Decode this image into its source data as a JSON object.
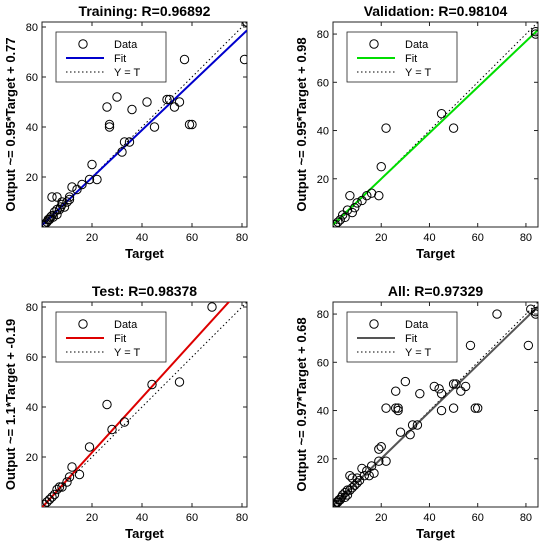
{
  "colors": {
    "Training": "#0000cc",
    "Validation": "#00dd00",
    "Test": "#dd0000",
    "All": "#555555",
    "marker": "#000000",
    "identity": "#000000"
  },
  "chart_data": [
    {
      "type": "scatter",
      "title": "Training: R=0.96892",
      "xlabel": "Target",
      "ylabel": "Output ~= 0.95*Target + 0.77",
      "xlim": [
        0,
        82
      ],
      "ylim": [
        0,
        82
      ],
      "xticks": [
        "20",
        "40",
        "60",
        "80"
      ],
      "yticks": [
        "20",
        "40",
        "60",
        "80"
      ],
      "tick_values": [
        20,
        40,
        60,
        80
      ],
      "legend": {
        "placement": "top-left",
        "entries": [
          "Data",
          "Fit",
          "Y = T"
        ]
      },
      "fit": {
        "slope": 0.95,
        "intercept": 0.77
      },
      "points": [
        [
          0.5,
          0.5
        ],
        [
          1,
          1
        ],
        [
          1.5,
          1.5
        ],
        [
          2,
          2
        ],
        [
          2.5,
          3
        ],
        [
          3,
          3
        ],
        [
          3.5,
          4
        ],
        [
          4,
          4.5
        ],
        [
          4.5,
          4
        ],
        [
          5,
          6
        ],
        [
          6,
          5
        ],
        [
          6,
          7
        ],
        [
          7,
          7
        ],
        [
          7.5,
          8
        ],
        [
          8,
          9
        ],
        [
          9,
          8
        ],
        [
          10,
          10
        ],
        [
          11,
          11
        ],
        [
          11,
          12
        ],
        [
          4,
          12
        ],
        [
          6,
          12
        ],
        [
          8,
          10
        ],
        [
          12,
          16
        ],
        [
          14,
          15
        ],
        [
          16,
          17
        ],
        [
          19,
          19
        ],
        [
          20,
          25
        ],
        [
          22,
          19
        ],
        [
          26,
          48
        ],
        [
          27,
          41
        ],
        [
          27,
          40
        ],
        [
          30,
          52
        ],
        [
          32,
          30
        ],
        [
          33,
          34
        ],
        [
          35,
          34
        ],
        [
          36,
          47
        ],
        [
          42,
          50
        ],
        [
          45,
          40
        ],
        [
          50,
          51
        ],
        [
          51,
          51
        ],
        [
          53,
          48
        ],
        [
          55,
          50
        ],
        [
          57,
          67
        ],
        [
          59,
          41
        ],
        [
          60,
          41
        ],
        [
          81,
          67
        ],
        [
          82,
          82
        ]
      ]
    },
    {
      "type": "scatter",
      "title": "Validation: R=0.98104",
      "xlabel": "Target",
      "ylabel": "Output ~= 0.95*Target + 0.98",
      "xlim": [
        0,
        85
      ],
      "ylim": [
        0,
        85
      ],
      "xticks": [
        "20",
        "40",
        "60",
        "80"
      ],
      "yticks": [
        "20",
        "40",
        "60",
        "80"
      ],
      "tick_values": [
        20,
        40,
        60,
        80
      ],
      "legend": {
        "placement": "top-left",
        "entries": [
          "Data",
          "Fit",
          "Y = T"
        ]
      },
      "fit": {
        "slope": 0.95,
        "intercept": 0.98
      },
      "points": [
        [
          1,
          1
        ],
        [
          2,
          2
        ],
        [
          3,
          3
        ],
        [
          4,
          5
        ],
        [
          5,
          4
        ],
        [
          6,
          7
        ],
        [
          7,
          13
        ],
        [
          8,
          6
        ],
        [
          9,
          8
        ],
        [
          10,
          10
        ],
        [
          12,
          11
        ],
        [
          14,
          13
        ],
        [
          16,
          14
        ],
        [
          19,
          13
        ],
        [
          20,
          25
        ],
        [
          22,
          41
        ],
        [
          45,
          47
        ],
        [
          50,
          41
        ],
        [
          84,
          80
        ],
        [
          84,
          81
        ]
      ]
    },
    {
      "type": "scatter",
      "title": "Test: R=0.98378",
      "xlabel": "Target",
      "ylabel": "Output ~= 1.1*Target + -0.19",
      "xlim": [
        0,
        82
      ],
      "ylim": [
        0,
        82
      ],
      "xticks": [
        "20",
        "40",
        "60",
        "80"
      ],
      "yticks": [
        "20",
        "40",
        "60",
        "80"
      ],
      "tick_values": [
        20,
        40,
        60,
        80
      ],
      "legend": {
        "placement": "top-left",
        "entries": [
          "Data",
          "Fit",
          "Y = T"
        ]
      },
      "fit": {
        "slope": 1.1,
        "intercept": -0.19
      },
      "points": [
        [
          1,
          1
        ],
        [
          2,
          2
        ],
        [
          3,
          3
        ],
        [
          4,
          4
        ],
        [
          5,
          5
        ],
        [
          6,
          7
        ],
        [
          7,
          8
        ],
        [
          8,
          8
        ],
        [
          10,
          10
        ],
        [
          11,
          12
        ],
        [
          12,
          16
        ],
        [
          15,
          13
        ],
        [
          19,
          24
        ],
        [
          26,
          41
        ],
        [
          28,
          31
        ],
        [
          33,
          34
        ],
        [
          44,
          49
        ],
        [
          55,
          50
        ],
        [
          68,
          80
        ]
      ]
    },
    {
      "type": "scatter",
      "title": "All: R=0.97329",
      "xlabel": "Target",
      "ylabel": "Output ~= 0.97*Target + 0.68",
      "xlim": [
        0,
        85
      ],
      "ylim": [
        0,
        85
      ],
      "xticks": [
        "20",
        "40",
        "60",
        "80"
      ],
      "yticks": [
        "20",
        "40",
        "60",
        "80"
      ],
      "tick_values": [
        20,
        40,
        60,
        80
      ],
      "legend": {
        "placement": "top-left",
        "entries": [
          "Data",
          "Fit",
          "Y = T"
        ]
      },
      "fit": {
        "slope": 0.97,
        "intercept": 0.68
      },
      "points": [
        [
          0.5,
          0.5
        ],
        [
          1,
          1
        ],
        [
          1.5,
          2
        ],
        [
          2,
          2
        ],
        [
          2.5,
          3
        ],
        [
          3,
          3
        ],
        [
          3.5,
          4
        ],
        [
          4,
          5
        ],
        [
          5,
          4
        ],
        [
          5,
          6
        ],
        [
          6,
          5
        ],
        [
          6,
          7
        ],
        [
          7,
          7
        ],
        [
          7,
          13
        ],
        [
          8,
          8
        ],
        [
          8,
          12
        ],
        [
          9,
          9
        ],
        [
          10,
          10
        ],
        [
          10,
          12
        ],
        [
          11,
          11
        ],
        [
          12,
          16
        ],
        [
          13,
          13
        ],
        [
          14,
          15
        ],
        [
          15,
          13
        ],
        [
          16,
          17
        ],
        [
          17,
          14
        ],
        [
          19,
          19
        ],
        [
          19,
          24
        ],
        [
          20,
          25
        ],
        [
          22,
          19
        ],
        [
          22,
          41
        ],
        [
          26,
          41
        ],
        [
          26,
          48
        ],
        [
          27,
          41
        ],
        [
          27,
          40
        ],
        [
          28,
          31
        ],
        [
          30,
          52
        ],
        [
          32,
          30
        ],
        [
          33,
          34
        ],
        [
          35,
          34
        ],
        [
          36,
          47
        ],
        [
          42,
          50
        ],
        [
          44,
          49
        ],
        [
          45,
          47
        ],
        [
          45,
          40
        ],
        [
          50,
          51
        ],
        [
          50,
          41
        ],
        [
          51,
          51
        ],
        [
          53,
          48
        ],
        [
          55,
          50
        ],
        [
          57,
          67
        ],
        [
          59,
          41
        ],
        [
          60,
          41
        ],
        [
          68,
          80
        ],
        [
          81,
          67
        ],
        [
          82,
          82
        ],
        [
          84,
          80
        ],
        [
          84,
          81
        ]
      ]
    }
  ]
}
